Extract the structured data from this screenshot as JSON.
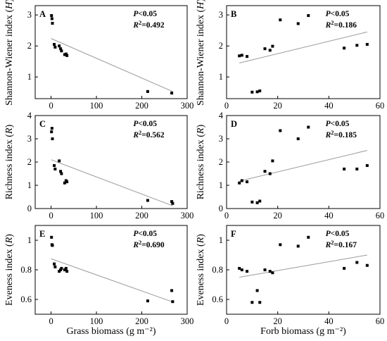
{
  "chart_data": [
    {
      "type": "scatter",
      "panel_label": "A",
      "ylabel": "Shannon-Wiener index (H)",
      "xlabel": "",
      "stats": {
        "p": "P<0.05",
        "r2": "R2=0.492"
      },
      "xlim": [
        -35,
        300
      ],
      "ylim": [
        0.3,
        3.3
      ],
      "xticks": [
        0,
        100,
        200,
        300
      ],
      "yticks": [
        1,
        2,
        3
      ],
      "x": [
        1,
        2,
        3,
        7,
        9,
        18,
        21,
        23,
        30,
        33,
        35,
        213,
        266
      ],
      "y": [
        2.98,
        2.88,
        2.73,
        2.05,
        1.96,
        2.0,
        1.91,
        1.84,
        1.72,
        1.74,
        1.69,
        0.53,
        0.48
      ],
      "fit": {
        "x": [
          0,
          268
        ],
        "y": [
          2.24,
          0.53
        ]
      }
    },
    {
      "type": "scatter",
      "panel_label": "B",
      "ylabel": "Shannon-Wiener index (H)",
      "xlabel": "",
      "stats": {
        "p": "P<0.05",
        "r2": "R2=0.186"
      },
      "xlim": [
        0,
        60
      ],
      "ylim": [
        0.3,
        3.3
      ],
      "xticks": [
        0,
        20,
        40,
        60
      ],
      "yticks": [
        1,
        2,
        3
      ],
      "x": [
        5,
        6,
        8,
        10,
        12,
        13,
        15,
        17,
        18,
        21,
        28,
        32,
        46,
        51,
        55
      ],
      "y": [
        1.68,
        1.7,
        1.66,
        0.51,
        0.52,
        0.55,
        1.91,
        1.86,
        1.99,
        2.84,
        2.72,
        2.98,
        1.93,
        2.02,
        2.05
      ],
      "fit": {
        "x": [
          5,
          55
        ],
        "y": [
          1.45,
          2.45
        ]
      }
    },
    {
      "type": "scatter",
      "panel_label": "C",
      "ylabel": "Richness index (R)",
      "xlabel": "",
      "stats": {
        "p": "P<0.05",
        "r2": "R2=0.562"
      },
      "xlim": [
        -35,
        300
      ],
      "ylim": [
        0,
        4
      ],
      "xticks": [
        0,
        100,
        200,
        300
      ],
      "yticks": [
        0,
        1,
        2,
        3,
        4
      ],
      "x": [
        1,
        2,
        3,
        7,
        9,
        18,
        21,
        23,
        30,
        33,
        35,
        213,
        266,
        268
      ],
      "y": [
        3.3,
        3.45,
        3.0,
        1.85,
        1.7,
        2.05,
        1.6,
        1.5,
        1.1,
        1.2,
        1.15,
        0.35,
        0.3,
        0.22
      ],
      "fit": {
        "x": [
          0,
          268
        ],
        "y": [
          2.1,
          0.12
        ]
      }
    },
    {
      "type": "scatter",
      "panel_label": "D",
      "ylabel": "Richness index (R)",
      "xlabel": "",
      "stats": {
        "p": "P<0.05",
        "r2": "R2=0.185"
      },
      "xlim": [
        0,
        60
      ],
      "ylim": [
        0,
        4
      ],
      "xticks": [
        0,
        20,
        40,
        60
      ],
      "yticks": [
        0,
        1,
        2,
        3,
        4
      ],
      "x": [
        5,
        6,
        8,
        10,
        12,
        13,
        15,
        17,
        18,
        21,
        28,
        32,
        46,
        51,
        55
      ],
      "y": [
        1.1,
        1.2,
        1.15,
        0.28,
        0.25,
        0.32,
        1.6,
        1.5,
        2.05,
        3.35,
        3.0,
        3.5,
        1.7,
        1.7,
        1.85
      ],
      "fit": {
        "x": [
          5,
          55
        ],
        "y": [
          1.18,
          2.5
        ]
      }
    },
    {
      "type": "scatter",
      "panel_label": "E",
      "ylabel": "Eveness index (R)",
      "xlabel": "Grass biomass (g m⁻²)",
      "stats": {
        "p": "P<0.05",
        "r2": "R2=0.690"
      },
      "xlim": [
        -35,
        300
      ],
      "ylim": [
        0.5,
        1.1
      ],
      "xticks": [
        0,
        100,
        200,
        300
      ],
      "yticks": [
        0.6,
        0.8,
        1.0
      ],
      "x": [
        1,
        2,
        3,
        7,
        9,
        18,
        21,
        23,
        30,
        33,
        35,
        213,
        266,
        268
      ],
      "y": [
        1.02,
        0.97,
        0.965,
        0.84,
        0.82,
        0.79,
        0.8,
        0.81,
        0.8,
        0.81,
        0.79,
        0.59,
        0.66,
        0.585
      ],
      "fit": {
        "x": [
          0,
          268
        ],
        "y": [
          0.875,
          0.583
        ]
      }
    },
    {
      "type": "scatter",
      "panel_label": "F",
      "ylabel": "Eveness index (R)",
      "xlabel": "Forb biomass (g m⁻²)",
      "stats": {
        "p": "P<0.05",
        "r2": "R2=0.167"
      },
      "xlim": [
        0,
        60
      ],
      "ylim": [
        0.5,
        1.1
      ],
      "xticks": [
        0,
        20,
        40,
        60
      ],
      "yticks": [
        0.6,
        0.8,
        1.0
      ],
      "x": [
        5,
        6,
        8,
        10,
        12,
        13,
        15,
        17,
        18,
        21,
        28,
        32,
        46,
        51,
        55
      ],
      "y": [
        0.81,
        0.8,
        0.79,
        0.58,
        0.66,
        0.58,
        0.8,
        0.79,
        0.78,
        0.97,
        0.96,
        1.02,
        0.81,
        0.85,
        0.83
      ],
      "fit": {
        "x": [
          5,
          55
        ],
        "y": [
          0.75,
          0.9
        ]
      }
    }
  ]
}
